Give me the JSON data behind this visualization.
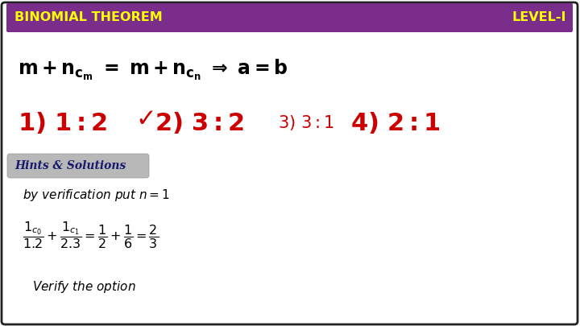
{
  "bg_color": "#ffffff",
  "border_color": "#222222",
  "header_bg": "#7b2d8b",
  "header_text_left": "BINOMIAL THEOREM",
  "header_text_right": "LEVEL-I",
  "header_text_color": "#ffff00",
  "hints_box_bg": "#b8b8b8",
  "hints_text": "Hints & Solutions",
  "red": "#cc0000",
  "dark_blue": "#1a1a6e"
}
